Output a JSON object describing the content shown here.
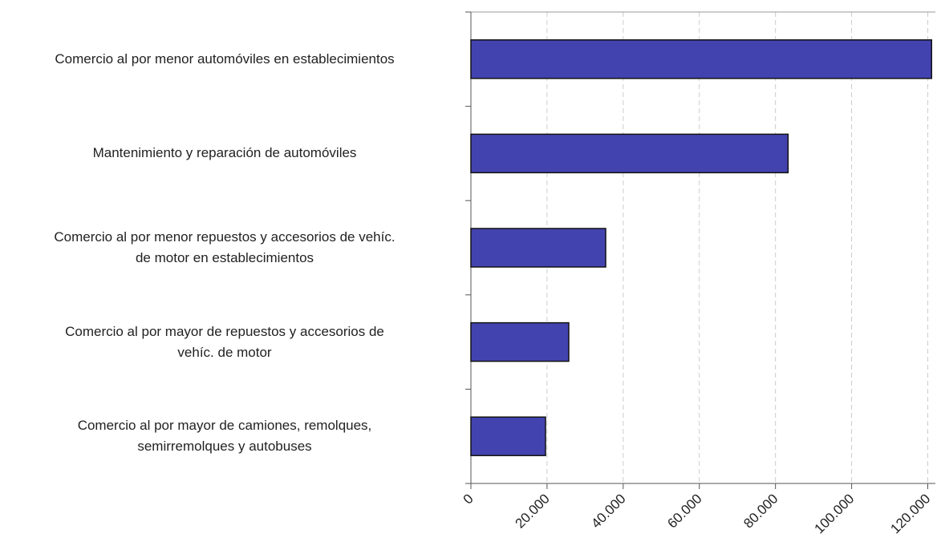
{
  "chart_data": {
    "type": "hbar",
    "categories": [
      "Comercio al por menor automóviles en establecimientos",
      "Mantenimiento y reparación de automóviles",
      "Comercio al por menor repuestos y accesorios de vehíc.\nde motor en establecimientos",
      "Comercio al por mayor de repuestos y accesorios de\nvehíc. de motor",
      "Comercio al por mayor de camiones, remolques,\nsemirremolques y autobuses"
    ],
    "values": [
      121000,
      83300,
      35400,
      25700,
      19600
    ],
    "color": "#4343b0",
    "xlim": [
      0,
      122000
    ],
    "xticks": [
      0,
      {
        "value": 20000,
        "label": "20.000"
      },
      {
        "value": 40000,
        "label": "40.000"
      },
      {
        "value": 60000,
        "label": "60.000"
      },
      {
        "value": 80000,
        "label": "80.000"
      },
      {
        "value": 100000,
        "label": "100.000"
      },
      {
        "value": 120000,
        "label": "120.000"
      }
    ],
    "grid": true
  }
}
